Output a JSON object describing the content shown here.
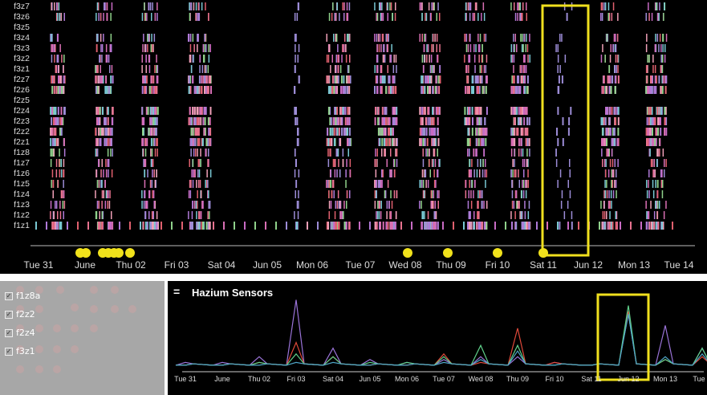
{
  "zones": [
    "f3z7",
    "f3z6",
    "f3z5",
    "f3z4",
    "f3z3",
    "f3z2",
    "f3z1",
    "f2z7",
    "f2z6",
    "f2z5",
    "f2z4",
    "f2z3",
    "f2z2",
    "f2z1",
    "f1z8",
    "f1z7",
    "f1z6",
    "f1z5",
    "f1z4",
    "f1z3",
    "f1z2",
    "f1z1"
  ],
  "top_axis_ticks": [
    "Tue 31",
    "June",
    "Thu 02",
    "Fri 03",
    "Sat 04",
    "Jun 05",
    "Mon 06",
    "Tue 07",
    "Wed 08",
    "Thu 09",
    "Fri 10",
    "Sat 11",
    "Jun 12",
    "Mon 13",
    "Tue 14"
  ],
  "checklist": [
    {
      "label": "f1z8a",
      "checked": true
    },
    {
      "label": "f2z2",
      "checked": true
    },
    {
      "label": "f2z4",
      "checked": true
    },
    {
      "label": "f3z1",
      "checked": true
    }
  ],
  "panel": {
    "menu_icon": "=",
    "title": "Hazium Sensors"
  },
  "bottom_axis_ticks": [
    "Tue 31",
    "June",
    "Thu 02",
    "Fri 03",
    "Sat 04",
    "Jun 05",
    "Mon 06",
    "Tue 07",
    "Wed 08",
    "Thu 09",
    "Fri 10",
    "Sat 11",
    "Jun 12",
    "Mon 13",
    "Tue"
  ],
  "colors": {
    "highlight": "#f0e01e",
    "background": "#000000",
    "left_panel": "#a7a7a7",
    "series": [
      "#9a73d8",
      "#e0493a",
      "#5fd08a",
      "#4fa7c9"
    ]
  },
  "chart_data": {
    "type": "line",
    "title": "Hazium Sensors",
    "x": [
      "Tue 31",
      "June",
      "Thu 02",
      "Fri 03",
      "Sat 04",
      "Jun 05",
      "Mon 06",
      "Tue 07",
      "Wed 08",
      "Thu 09",
      "Fri 10",
      "Sat 11",
      "Jun 12",
      "Mon 13",
      "Tue"
    ],
    "series": [
      {
        "name": "f1z8a",
        "values": [
          0.3,
          0.3,
          0.5,
          2.5,
          0.8,
          0.4,
          0.3,
          0.4,
          0.5,
          0.5,
          0.3,
          0.2,
          2.0,
          1.6,
          0.8
        ]
      },
      {
        "name": "f2z2",
        "values": [
          0.2,
          0.2,
          0.3,
          1.0,
          0.5,
          0.2,
          0.2,
          0.6,
          0.3,
          1.5,
          0.3,
          0.2,
          2.1,
          0.4,
          0.5
        ]
      },
      {
        "name": "f2z4",
        "values": [
          0.2,
          0.2,
          0.3,
          0.6,
          0.5,
          0.3,
          0.3,
          0.5,
          0.9,
          0.9,
          0.2,
          0.2,
          2.3,
          0.4,
          0.8
        ]
      },
      {
        "name": "f3z1",
        "values": [
          0.2,
          0.2,
          0.2,
          0.3,
          0.3,
          0.2,
          0.2,
          0.3,
          0.4,
          0.7,
          0.2,
          0.2,
          2.0,
          0.5,
          0.6
        ]
      }
    ],
    "highlight_range": [
      "Sat 11",
      "Jun 12"
    ],
    "grid": false,
    "legend": "left panel checklist"
  }
}
